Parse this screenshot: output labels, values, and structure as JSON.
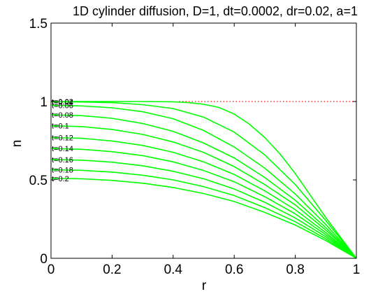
{
  "chart_data": {
    "type": "line",
    "title": "1D cylinder diffusion, D=1, dt=0.0002, dr=0.02, a=1",
    "xlabel": "r",
    "ylabel": "n",
    "xlim": [
      0,
      1
    ],
    "ylim": [
      0,
      1.5
    ],
    "xticks": [
      {
        "value": 0,
        "label": "0"
      },
      {
        "value": 0.2,
        "label": "0.2"
      },
      {
        "value": 0.4,
        "label": "0.4"
      },
      {
        "value": 0.6,
        "label": "0.6"
      },
      {
        "value": 0.8,
        "label": "0.8"
      },
      {
        "value": 1,
        "label": "1"
      }
    ],
    "yticks": [
      {
        "value": 0,
        "label": "0"
      },
      {
        "value": 0.5,
        "label": "0.5"
      },
      {
        "value": 1,
        "label": "1"
      },
      {
        "value": 1.5,
        "label": "1.5"
      }
    ],
    "grid": false,
    "curve_color": "#00ff00",
    "reference_line": {
      "y": 1,
      "color": "#ff0000",
      "style": "dotted"
    },
    "series": [
      {
        "name": "t=0.02",
        "values": [
          [
            0,
            1.0
          ],
          [
            0.1,
            1.0
          ],
          [
            0.2,
            1.0
          ],
          [
            0.3,
            1.0
          ],
          [
            0.4,
            0.998
          ],
          [
            0.45,
            0.993
          ],
          [
            0.5,
            0.982
          ],
          [
            0.55,
            0.962
          ],
          [
            0.6,
            0.92
          ],
          [
            0.65,
            0.855
          ],
          [
            0.7,
            0.77
          ],
          [
            0.75,
            0.665
          ],
          [
            0.8,
            0.54
          ],
          [
            0.85,
            0.4
          ],
          [
            0.9,
            0.26
          ],
          [
            0.95,
            0.13
          ],
          [
            1,
            0
          ]
        ]
      },
      {
        "name": "t=0.04",
        "values": [
          [
            0,
            0.998
          ],
          [
            0.1,
            0.997
          ],
          [
            0.2,
            0.993
          ],
          [
            0.3,
            0.98
          ],
          [
            0.4,
            0.955
          ],
          [
            0.5,
            0.9
          ],
          [
            0.6,
            0.805
          ],
          [
            0.7,
            0.66
          ],
          [
            0.8,
            0.47
          ],
          [
            0.9,
            0.24
          ],
          [
            1,
            0
          ]
        ]
      },
      {
        "name": "t=0.06",
        "values": [
          [
            0,
            0.975
          ],
          [
            0.1,
            0.972
          ],
          [
            0.2,
            0.96
          ],
          [
            0.3,
            0.935
          ],
          [
            0.4,
            0.89
          ],
          [
            0.5,
            0.815
          ],
          [
            0.6,
            0.71
          ],
          [
            0.7,
            0.575
          ],
          [
            0.8,
            0.41
          ],
          [
            0.9,
            0.215
          ],
          [
            1,
            0
          ]
        ]
      },
      {
        "name": "t=0.08",
        "values": [
          [
            0,
            0.915
          ],
          [
            0.1,
            0.91
          ],
          [
            0.2,
            0.893
          ],
          [
            0.3,
            0.86
          ],
          [
            0.4,
            0.81
          ],
          [
            0.5,
            0.735
          ],
          [
            0.6,
            0.64
          ],
          [
            0.7,
            0.515
          ],
          [
            0.8,
            0.37
          ],
          [
            0.9,
            0.195
          ],
          [
            1,
            0
          ]
        ]
      },
      {
        "name": "t=0.1",
        "values": [
          [
            0,
            0.845
          ],
          [
            0.1,
            0.84
          ],
          [
            0.2,
            0.822
          ],
          [
            0.3,
            0.79
          ],
          [
            0.4,
            0.742
          ],
          [
            0.5,
            0.675
          ],
          [
            0.6,
            0.585
          ],
          [
            0.7,
            0.47
          ],
          [
            0.8,
            0.34
          ],
          [
            0.9,
            0.18
          ],
          [
            1,
            0
          ]
        ]
      },
      {
        "name": "t=0.12",
        "values": [
          [
            0,
            0.77
          ],
          [
            0.1,
            0.765
          ],
          [
            0.2,
            0.748
          ],
          [
            0.3,
            0.72
          ],
          [
            0.4,
            0.676
          ],
          [
            0.5,
            0.615
          ],
          [
            0.6,
            0.535
          ],
          [
            0.7,
            0.43
          ],
          [
            0.8,
            0.31
          ],
          [
            0.9,
            0.163
          ],
          [
            1,
            0
          ]
        ]
      },
      {
        "name": "t=0.14",
        "values": [
          [
            0,
            0.7
          ],
          [
            0.1,
            0.695
          ],
          [
            0.2,
            0.68
          ],
          [
            0.3,
            0.655
          ],
          [
            0.4,
            0.615
          ],
          [
            0.5,
            0.56
          ],
          [
            0.6,
            0.488
          ],
          [
            0.7,
            0.393
          ],
          [
            0.8,
            0.283
          ],
          [
            0.9,
            0.15
          ],
          [
            1,
            0
          ]
        ]
      },
      {
        "name": "t=0.16",
        "values": [
          [
            0,
            0.63
          ],
          [
            0.1,
            0.626
          ],
          [
            0.2,
            0.613
          ],
          [
            0.3,
            0.59
          ],
          [
            0.4,
            0.555
          ],
          [
            0.5,
            0.507
          ],
          [
            0.6,
            0.442
          ],
          [
            0.7,
            0.357
          ],
          [
            0.8,
            0.257
          ],
          [
            0.9,
            0.137
          ],
          [
            1,
            0
          ]
        ]
      },
      {
        "name": "t=0.18",
        "values": [
          [
            0,
            0.565
          ],
          [
            0.1,
            0.561
          ],
          [
            0.2,
            0.55
          ],
          [
            0.3,
            0.53
          ],
          [
            0.4,
            0.5
          ],
          [
            0.5,
            0.457
          ],
          [
            0.6,
            0.4
          ],
          [
            0.7,
            0.323
          ],
          [
            0.8,
            0.233
          ],
          [
            0.9,
            0.124
          ],
          [
            1,
            0
          ]
        ]
      },
      {
        "name": "t=0.2",
        "values": [
          [
            0,
            0.51
          ],
          [
            0.1,
            0.507
          ],
          [
            0.2,
            0.497
          ],
          [
            0.3,
            0.479
          ],
          [
            0.4,
            0.452
          ],
          [
            0.5,
            0.413
          ],
          [
            0.6,
            0.362
          ],
          [
            0.7,
            0.293
          ],
          [
            0.8,
            0.212
          ],
          [
            0.9,
            0.113
          ],
          [
            1,
            0
          ]
        ]
      }
    ]
  }
}
